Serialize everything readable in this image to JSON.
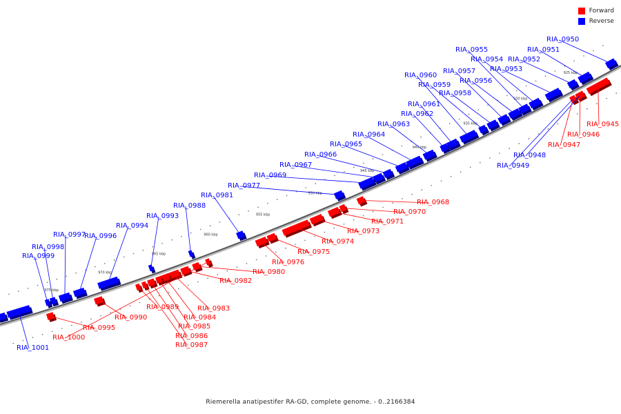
{
  "legend": {
    "forward_label": "Forward",
    "reverse_label": "Reverse",
    "forward_color": "#ff0000",
    "reverse_color": "#0000ff"
  },
  "caption": "Riemerella anatipestifer RA-GD, complete genome. - 0..2166384",
  "scale_labels": [
    "925 kbp",
    "930 kbp",
    "935 kbp",
    "940 kbp",
    "945 kbp",
    "950 kbp",
    "955 kbp",
    "960 kbp",
    "965 kbp",
    "970 kbp",
    "975 kbp"
  ],
  "reverse_genes": [
    "RIA_0950",
    "RIA_0951",
    "RIA_0952",
    "RIA_0953",
    "RIA_0954",
    "RIA_0955",
    "RIA_0956",
    "RIA_0957",
    "RIA_0958",
    "RIA_0959",
    "RIA_0960",
    "RIA_0961",
    "RIA_0962",
    "RIA_0963",
    "RIA_0964",
    "RIA_0965",
    "RIA_0966",
    "RIA_0967",
    "RIA_0969",
    "RIA_0977",
    "RIA_0981",
    "RIA_0988",
    "RIA_0993",
    "RIA_0994",
    "RIA_0996",
    "RIA_0997",
    "RIA_0998",
    "RIA_0999",
    "RIA_1001",
    "RIA_0948",
    "RIA_0949"
  ],
  "forward_genes": [
    "RIA_0945",
    "RIA_0946",
    "RIA_0947",
    "RIA_0968",
    "RIA_0970",
    "RIA_0971",
    "RIA_0973",
    "RIA_0974",
    "RIA_0975",
    "RIA_0976",
    "RIA_0980",
    "RIA_0982",
    "RIA_0983",
    "RIA_0984",
    "RIA_0985",
    "RIA_0986",
    "RIA_0987",
    "RIA_0989",
    "RIA_0990",
    "RIA_0995",
    "RIA_1000"
  ]
}
